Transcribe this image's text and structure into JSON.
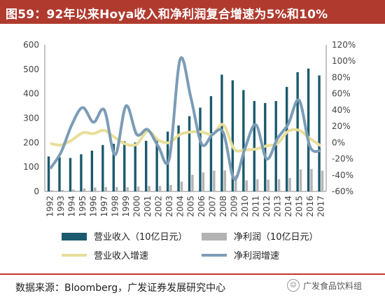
{
  "title": "图59：92年以来Hoya收入和净利润复合增速为5%和10%",
  "colors": {
    "title_bg": "#b03a2e",
    "revenue_bar": "#1c5a6e",
    "net_profit_bar": "#b3b3b3",
    "revenue_growth_line": "#e8de9a",
    "profit_growth_line": "#7b9cb6",
    "source_rule": "#c0392b"
  },
  "chart_data": {
    "type": "bar",
    "categories": [
      "1992",
      "1993",
      "1994",
      "1995",
      "1996",
      "1997",
      "1998",
      "1999",
      "2000",
      "2001",
      "2002",
      "2003",
      "2004",
      "2005",
      "2006",
      "2007",
      "2008",
      "2009",
      "2010",
      "2011",
      "2012",
      "2013",
      "2014",
      "2015",
      "2016",
      "2017"
    ],
    "left_axis": {
      "ylim": [
        0,
        600
      ],
      "ticks": [
        "0",
        "100",
        "200",
        "300",
        "400",
        "500",
        "600"
      ]
    },
    "right_axis": {
      "ylim": [
        -60,
        120
      ],
      "ticks": [
        "-60%",
        "-40%",
        "-20%",
        "0%",
        "20%",
        "40%",
        "60%",
        "80%",
        "100%",
        "120%"
      ]
    },
    "series": [
      {
        "name": "营业收入（10亿日元）",
        "kind": "bar",
        "axis": "left",
        "values": [
          143,
          140,
          137,
          152,
          167,
          190,
          195,
          205,
          200,
          207,
          215,
          245,
          270,
          308,
          343,
          390,
          478,
          455,
          415,
          370,
          362,
          370,
          428,
          488,
          503,
          475
        ]
      },
      {
        "name": "净利润（10亿日元）",
        "kind": "bar",
        "axis": "left",
        "values": [
          5,
          6,
          8,
          12,
          16,
          18,
          18,
          17,
          20,
          22,
          22,
          26,
          40,
          68,
          78,
          85,
          86,
          65,
          45,
          50,
          48,
          50,
          55,
          90,
          92,
          85
        ]
      },
      {
        "name": "营业收入增速",
        "kind": "line",
        "axis": "right",
        "values": [
          -1,
          -3,
          3,
          12,
          11,
          15,
          6,
          -2,
          -2,
          14,
          3,
          0,
          10,
          13,
          13,
          10,
          22,
          -8,
          -9,
          -8,
          -4,
          -1,
          14,
          15,
          5,
          -4
        ]
      },
      {
        "name": "净利润增速",
        "kind": "line",
        "axis": "right",
        "values": [
          -32,
          -12,
          22,
          43,
          25,
          40,
          -15,
          45,
          10,
          16,
          -5,
          -20,
          102,
          55,
          -2,
          10,
          12,
          -45,
          -7,
          22,
          -20,
          5,
          23,
          52,
          -5,
          -10
        ]
      }
    ],
    "legend_position": "bottom",
    "grid": false
  },
  "source": "数据来源：Bloomberg，广发证券发展研究中心",
  "watermark": "广发食品饮料组"
}
